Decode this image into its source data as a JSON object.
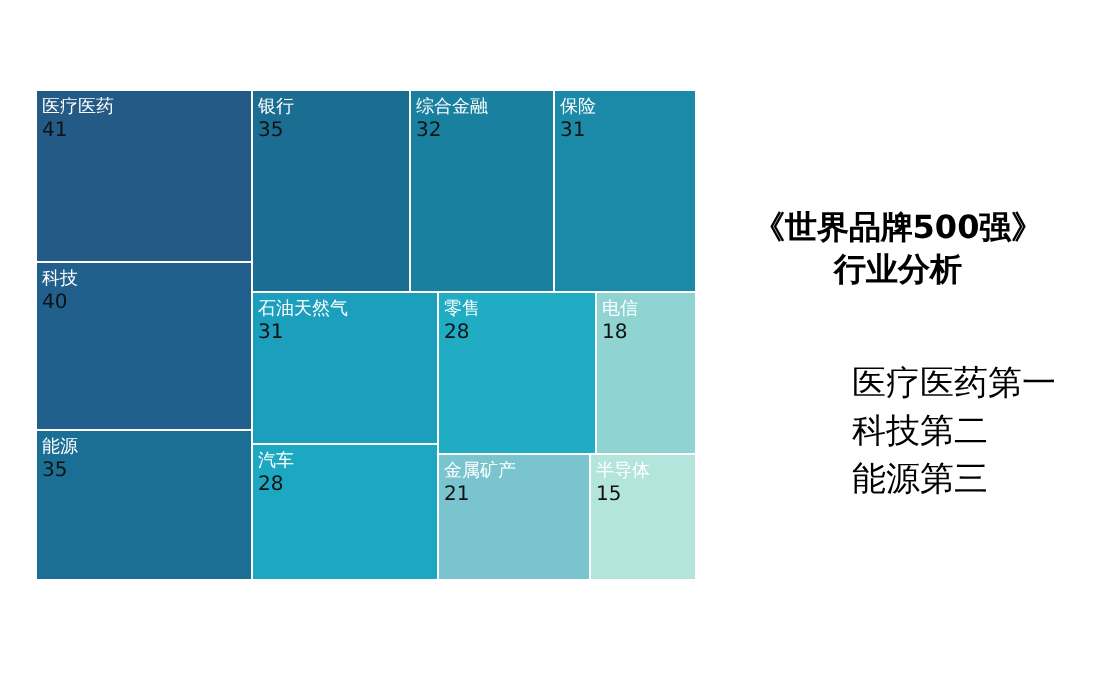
{
  "chart_data": {
    "type": "other",
    "title": "《世界品牌500强》行业分析",
    "categories": [
      "医疗医药",
      "科技",
      "能源",
      "银行",
      "综合金融",
      "保险",
      "石油天然气",
      "汽车",
      "零售",
      "电信",
      "金属矿产",
      "半导体"
    ],
    "values": [
      41,
      40,
      35,
      35,
      32,
      31,
      31,
      28,
      28,
      18,
      21,
      15
    ],
    "colors": [
      "#245b86",
      "#21608c",
      "#1b6f94",
      "#1b6d91",
      "#1a80a0",
      "#1a8aa8",
      "#1b9fbd",
      "#1ca8c3",
      "#20adc4",
      "#8fd4d2",
      "#79c4cf",
      "#b4e5dc"
    ],
    "data_labels": true,
    "annotations": [
      "医疗医药第一",
      "科技第二",
      "能源第三"
    ]
  }
}
